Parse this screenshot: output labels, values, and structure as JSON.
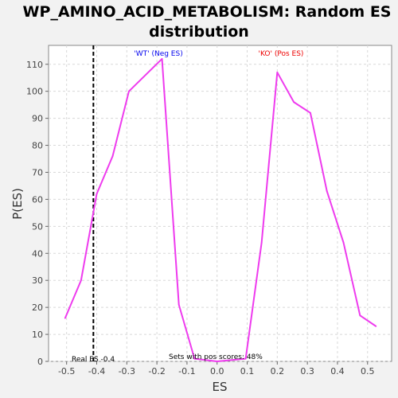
{
  "chart_data": {
    "type": "line",
    "title_line1": "WP_AMINO_ACID_METABOLISM: Random ES",
    "title_line2": "distribution",
    "xlabel": "ES",
    "ylabel": "P(ES)",
    "xlim": [
      -0.56,
      0.58
    ],
    "ylim": [
      0,
      117
    ],
    "xticks": [
      -0.5,
      -0.4,
      -0.3,
      -0.2,
      -0.1,
      0.0,
      0.1,
      0.2,
      0.3,
      0.4,
      0.5
    ],
    "xtick_labels": [
      "-0.5",
      "-0.4",
      "-0.3",
      "-0.2",
      "-0.1",
      "0.0",
      "0.1",
      "0.2",
      "0.3",
      "0.4",
      "0.5"
    ],
    "yticks": [
      0,
      10,
      20,
      30,
      40,
      50,
      60,
      70,
      80,
      90,
      100,
      110
    ],
    "ytick_labels": [
      "0",
      "10",
      "20",
      "30",
      "40",
      "50",
      "60",
      "70",
      "80",
      "90",
      "100",
      "110"
    ],
    "grid": true,
    "series": [
      {
        "color": "#ee3bee",
        "x": [
          -0.505,
          -0.452,
          -0.4,
          -0.347,
          -0.293,
          -0.183,
          -0.127,
          -0.075,
          0.0,
          0.095,
          0.148,
          0.2,
          0.255,
          0.31,
          0.365,
          0.42,
          0.475,
          0.528
        ],
        "y": [
          16,
          30,
          62,
          76,
          100,
          112,
          21,
          1,
          0,
          1,
          44,
          107,
          96,
          92,
          63,
          44,
          17,
          13
        ]
      }
    ],
    "real_es": -0.411,
    "annotations": {
      "wt_label": "'WT' (Neg ES)",
      "ko_label": "'KO' (Pos ES)",
      "real_es_label": "Real ES -0.4",
      "pos_scores_label": "Sets with pos scores: 48%"
    },
    "colors": {
      "wt": "#0000ee",
      "ko": "#ee0000",
      "line": "#ee3bee",
      "grid": "#d8d8d8",
      "plot_bg": "#ffffff",
      "page_bg": "#f2f2f2"
    }
  }
}
